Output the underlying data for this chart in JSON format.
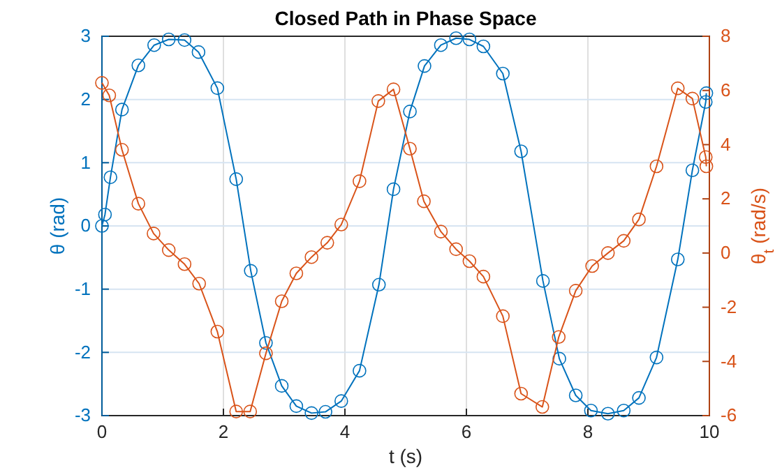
{
  "chart_data": {
    "type": "line",
    "title": "Closed Path in Phase Space",
    "xlabel": "t (s)",
    "ylabel": "θ  (rad)",
    "y2label": "θ$_{t}$  (rad/s)",
    "xlim": [
      0,
      10
    ],
    "xticks": [
      0,
      2,
      4,
      6,
      8,
      10
    ],
    "ylim": [
      -3,
      3
    ],
    "yticks": [
      -3,
      -2,
      -1,
      0,
      1,
      2,
      3
    ],
    "y2lim": [
      -6,
      8
    ],
    "y2ticks": [
      -6,
      -4,
      -2,
      0,
      2,
      4,
      6,
      8
    ],
    "grid": true,
    "marker": "circle",
    "line_style": "solid",
    "series": [
      {
        "color": "#0072bd",
        "x": [
          0,
          0.05,
          0.14,
          0.33,
          0.6,
          0.86,
          1.1,
          1.36,
          1.59,
          1.9,
          2.21,
          2.45,
          2.7,
          2.96,
          3.2,
          3.45,
          3.68,
          3.94,
          4.24,
          4.56,
          4.8,
          5.07,
          5.31,
          5.58,
          5.83,
          6.05,
          6.28,
          6.6,
          6.9,
          7.26,
          7.53,
          7.8,
          8.05,
          8.33,
          8.59,
          8.84,
          9.13,
          9.48,
          9.72,
          9.94,
          9.95
        ],
        "values": [
          0,
          0.18,
          0.77,
          1.84,
          2.54,
          2.86,
          2.95,
          2.94,
          2.75,
          2.18,
          0.74,
          -0.71,
          -1.85,
          -2.53,
          -2.85,
          -2.96,
          -2.94,
          -2.77,
          -2.29,
          -0.93,
          0.58,
          1.81,
          2.53,
          2.86,
          2.97,
          2.95,
          2.84,
          2.41,
          1.18,
          -0.87,
          -2.1,
          -2.68,
          -2.92,
          -2.97,
          -2.92,
          -2.72,
          -2.08,
          -0.53,
          0.88,
          1.96,
          2.1
        ]
      },
      {
        "color": "#d95319",
        "axis": "y2",
        "x": [
          0,
          0.12,
          0.33,
          0.6,
          0.85,
          1.1,
          1.36,
          1.6,
          1.9,
          2.21,
          2.44,
          2.7,
          2.96,
          3.2,
          3.45,
          3.71,
          3.94,
          4.24,
          4.55,
          4.8,
          5.07,
          5.3,
          5.58,
          5.83,
          6.05,
          6.28,
          6.6,
          6.9,
          7.25,
          7.52,
          7.8,
          8.07,
          8.33,
          8.59,
          8.84,
          9.13,
          9.48,
          9.72,
          9.94,
          9.95
        ],
        "values": [
          6.28,
          5.82,
          3.81,
          1.82,
          0.72,
          0.11,
          -0.41,
          -1.13,
          -2.9,
          -5.85,
          -5.85,
          -3.7,
          -1.78,
          -0.75,
          -0.15,
          0.38,
          1.05,
          2.65,
          5.61,
          6.04,
          3.85,
          1.91,
          0.79,
          0.14,
          -0.3,
          -0.87,
          -2.33,
          -5.19,
          -5.68,
          -3.1,
          -1.39,
          -0.48,
          0,
          0.45,
          1.24,
          3.2,
          6.08,
          5.7,
          3.54,
          3.2
        ]
      }
    ]
  }
}
